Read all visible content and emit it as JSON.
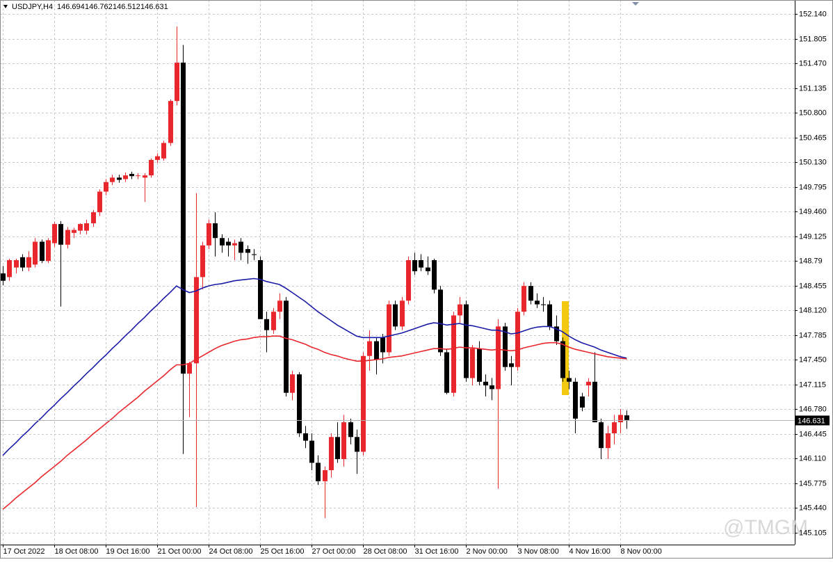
{
  "chart_data": {
    "type": "candlestick",
    "symbol": "USDJPY,H4",
    "watermark": "@TMGM",
    "up_color": "#e8262b",
    "down_color": "#000000",
    "grid": true,
    "ylim": [
      144.94,
      152.33
    ],
    "yticks": [
      {
        "value": 152.14,
        "label": "152.140"
      },
      {
        "value": 151.805,
        "label": "151.805"
      },
      {
        "value": 151.47,
        "label": "151.470"
      },
      {
        "value": 151.135,
        "label": "151.135"
      },
      {
        "value": 150.8,
        "label": "150.800"
      },
      {
        "value": 150.465,
        "label": "150.465"
      },
      {
        "value": 150.13,
        "label": "150.130"
      },
      {
        "value": 149.795,
        "label": "149.795"
      },
      {
        "value": 149.46,
        "label": "149.460"
      },
      149.125,
      148.79,
      148.455,
      {
        "value": 148.12,
        "label": "148.120"
      },
      147.785,
      {
        "value": 147.45,
        "label": "147.450"
      },
      147.115,
      {
        "value": 146.78,
        "label": "146.780"
      },
      146.445,
      {
        "value": 146.11,
        "label": "146.110"
      },
      145.775,
      {
        "value": 145.44,
        "label": "145.440"
      },
      145.105
    ],
    "categories": [
      "17 Oct 2022",
      null,
      null,
      null,
      null,
      null,
      null,
      null,
      "18 Oct 08:00",
      null,
      null,
      null,
      null,
      null,
      null,
      null,
      "19 Oct 16:00",
      null,
      null,
      null,
      null,
      null,
      null,
      null,
      "21 Oct 00:00",
      null,
      null,
      null,
      null,
      null,
      null,
      null,
      "24 Oct 08:00",
      null,
      null,
      null,
      null,
      null,
      null,
      null,
      "25 Oct 16:00",
      null,
      null,
      null,
      null,
      null,
      null,
      null,
      "27 Oct 00:00",
      null,
      null,
      null,
      null,
      null,
      null,
      null,
      "28 Oct 08:00",
      null,
      null,
      null,
      null,
      null,
      null,
      null,
      "31 Oct 16:00",
      null,
      null,
      null,
      null,
      null,
      null,
      null,
      "2 Nov 00:00",
      null,
      null,
      null,
      null,
      null,
      null,
      null,
      "3 Nov 08:00",
      null,
      null,
      null,
      null,
      null,
      null,
      null,
      "4 Nov 16:00",
      null,
      null,
      null,
      null,
      null,
      null,
      null,
      "8 Nov 00:00",
      null
    ],
    "ohlc": [
      [
        148.62,
        148.72,
        148.46,
        148.52
      ],
      [
        148.57,
        148.82,
        148.52,
        148.8
      ],
      [
        148.7,
        148.82,
        148.62,
        148.8
      ],
      [
        148.84,
        148.88,
        148.65,
        148.7
      ],
      [
        148.7,
        148.92,
        148.65,
        148.84
      ],
      [
        148.74,
        149.1,
        148.7,
        149.05
      ],
      [
        149.05,
        149.08,
        148.76,
        148.79
      ],
      [
        148.79,
        149.1,
        148.76,
        149.07
      ],
      [
        149.03,
        149.32,
        148.98,
        149.29
      ],
      [
        149.29,
        149.33,
        148.17,
        149.01
      ],
      [
        149.01,
        149.25,
        148.96,
        149.21
      ],
      [
        149.17,
        149.24,
        149.1,
        149.21
      ],
      [
        149.2,
        149.3,
        149.15,
        149.29
      ],
      [
        149.2,
        149.35,
        149.15,
        149.3
      ],
      [
        149.3,
        149.48,
        149.25,
        149.45
      ],
      [
        149.45,
        149.76,
        149.4,
        149.73
      ],
      [
        149.73,
        149.9,
        149.68,
        149.86
      ],
      [
        149.86,
        149.96,
        149.82,
        149.92
      ],
      [
        149.92,
        149.96,
        149.85,
        149.89
      ],
      [
        149.9,
        149.99,
        149.86,
        149.95
      ],
      [
        149.97,
        150.0,
        149.9,
        149.94
      ],
      [
        149.95,
        149.98,
        149.9,
        149.95
      ],
      [
        149.92,
        149.98,
        149.59,
        149.95
      ],
      [
        149.95,
        150.18,
        149.92,
        150.16
      ],
      [
        150.16,
        150.25,
        150.12,
        150.21
      ],
      [
        150.18,
        150.42,
        150.15,
        150.39
      ],
      [
        150.39,
        150.98,
        150.35,
        150.96
      ],
      [
        150.96,
        151.97,
        150.9,
        151.48
      ],
      [
        151.48,
        151.72,
        146.17,
        147.26
      ],
      [
        147.26,
        147.42,
        146.67,
        147.4
      ],
      [
        147.4,
        149.71,
        145.45,
        148.57
      ],
      [
        148.57,
        149.05,
        148.4,
        149.0
      ],
      [
        149.0,
        149.35,
        148.95,
        149.3
      ],
      [
        149.3,
        149.45,
        148.85,
        149.1
      ],
      [
        149.1,
        149.15,
        148.9,
        149.0
      ],
      [
        149.05,
        149.1,
        148.85,
        149.0
      ],
      [
        149.0,
        149.08,
        148.8,
        149.03
      ],
      [
        149.05,
        149.1,
        148.8,
        148.9
      ],
      [
        148.95,
        149.0,
        148.75,
        148.9
      ],
      [
        148.88,
        148.95,
        148.8,
        148.87
      ],
      [
        148.8,
        148.85,
        148.0,
        148.0
      ],
      [
        148.0,
        148.1,
        147.55,
        147.85
      ],
      [
        147.85,
        148.15,
        147.8,
        148.1
      ],
      [
        148.1,
        148.35,
        148.0,
        148.25
      ],
      [
        148.25,
        148.3,
        146.95,
        147.0
      ],
      [
        147.0,
        147.3,
        146.9,
        147.25
      ],
      [
        147.25,
        147.28,
        146.4,
        146.45
      ],
      [
        146.45,
        146.55,
        146.25,
        146.35
      ],
      [
        146.35,
        146.45,
        145.95,
        146.05
      ],
      [
        146.05,
        146.15,
        145.75,
        145.8
      ],
      [
        145.8,
        146.0,
        145.3,
        145.95
      ],
      [
        145.95,
        146.45,
        145.85,
        146.4
      ],
      [
        146.4,
        146.6,
        146.05,
        146.1
      ],
      [
        146.1,
        146.7,
        146.0,
        146.6
      ],
      [
        146.6,
        146.65,
        146.3,
        146.4
      ],
      [
        146.4,
        146.5,
        145.9,
        146.2
      ],
      [
        146.2,
        147.55,
        146.15,
        147.5
      ],
      [
        147.5,
        147.85,
        147.3,
        147.7
      ],
      [
        147.7,
        147.75,
        147.25,
        147.45
      ],
      [
        147.75,
        147.8,
        147.4,
        147.55
      ],
      [
        147.55,
        148.25,
        147.5,
        148.2
      ],
      [
        148.2,
        148.25,
        147.85,
        147.9
      ],
      [
        147.9,
        148.3,
        147.85,
        148.25
      ],
      [
        148.25,
        148.85,
        148.2,
        148.8
      ],
      [
        148.8,
        148.9,
        148.6,
        148.65
      ],
      [
        148.8,
        148.88,
        148.65,
        148.7
      ],
      [
        148.7,
        148.85,
        148.6,
        148.65
      ],
      [
        148.8,
        148.82,
        148.35,
        148.4
      ],
      [
        148.4,
        148.45,
        147.5,
        147.55
      ],
      [
        147.55,
        147.6,
        146.98,
        147.0
      ],
      [
        147.0,
        148.1,
        146.95,
        148.05
      ],
      [
        148.05,
        148.3,
        147.95,
        148.2
      ],
      [
        148.2,
        148.25,
        147.15,
        147.2
      ],
      [
        147.2,
        147.65,
        147.1,
        147.6
      ],
      [
        147.6,
        147.7,
        147.1,
        147.15
      ],
      [
        147.15,
        147.25,
        146.95,
        147.1
      ],
      [
        147.1,
        147.2,
        146.9,
        147.05
      ],
      [
        147.05,
        148.0,
        145.7,
        147.9
      ],
      [
        147.9,
        147.95,
        147.3,
        147.35
      ],
      [
        147.4,
        147.5,
        147.1,
        147.35
      ],
      [
        147.35,
        148.15,
        147.3,
        148.1
      ],
      [
        148.1,
        148.5,
        148.05,
        148.45
      ],
      [
        148.45,
        148.5,
        148.2,
        148.25
      ],
      [
        148.25,
        148.35,
        148.15,
        148.2
      ],
      [
        148.2,
        148.3,
        148.1,
        148.19
      ],
      [
        148.2,
        148.25,
        147.85,
        147.9
      ],
      [
        147.9,
        148.05,
        147.65,
        147.7
      ],
      [
        147.7,
        147.75,
        147.15,
        147.2
      ],
      [
        147.2,
        147.3,
        147.05,
        147.15
      ],
      [
        147.15,
        147.2,
        146.45,
        146.65
      ],
      [
        146.95,
        147.0,
        146.75,
        146.8
      ],
      [
        147.1,
        147.2,
        146.95,
        147.15
      ],
      [
        147.15,
        147.55,
        146.6,
        146.6
      ],
      [
        146.6,
        146.65,
        146.1,
        146.25
      ],
      [
        146.25,
        146.55,
        146.1,
        146.45
      ],
      [
        146.45,
        146.7,
        146.3,
        146.6
      ],
      [
        146.6,
        146.78,
        146.45,
        146.7
      ],
      [
        146.694,
        146.762,
        146.512,
        146.631
      ]
    ],
    "indicators": [
      {
        "color": "#1a1aa6",
        "values": [
          146.15,
          146.24,
          146.32,
          146.41,
          146.49,
          146.58,
          146.66,
          146.75,
          146.83,
          146.92,
          147.0,
          147.09,
          147.17,
          147.26,
          147.34,
          147.43,
          147.51,
          147.6,
          147.68,
          147.77,
          147.85,
          147.94,
          148.02,
          148.11,
          148.19,
          148.28,
          148.36,
          148.45,
          148.4,
          148.36,
          148.38,
          148.42,
          148.45,
          148.47,
          148.48,
          148.5,
          148.52,
          148.53,
          148.54,
          148.55,
          148.54,
          148.51,
          148.49,
          148.47,
          148.42,
          148.36,
          148.3,
          148.24,
          148.17,
          148.1,
          148.04,
          147.98,
          147.92,
          147.87,
          147.82,
          147.77,
          147.75,
          147.75,
          147.75,
          147.75,
          147.77,
          147.79,
          147.81,
          147.84,
          147.87,
          147.9,
          147.93,
          147.95,
          147.94,
          147.92,
          147.93,
          147.94,
          147.92,
          147.91,
          147.89,
          147.87,
          147.85,
          147.85,
          147.83,
          147.8,
          147.81,
          147.84,
          147.87,
          147.89,
          147.9,
          147.9,
          147.87,
          147.83,
          147.77,
          147.72,
          147.68,
          147.65,
          147.62,
          147.58,
          147.55,
          147.52,
          147.49,
          147.47
        ]
      },
      {
        "color": "#e8262b",
        "values": [
          145.42,
          145.49,
          145.57,
          145.64,
          145.71,
          145.78,
          145.86,
          145.93,
          146.0,
          146.07,
          146.15,
          146.22,
          146.29,
          146.36,
          146.44,
          146.51,
          146.58,
          146.65,
          146.73,
          146.8,
          146.87,
          146.94,
          147.02,
          147.09,
          147.16,
          147.23,
          147.31,
          147.38,
          147.38,
          147.4,
          147.45,
          147.5,
          147.55,
          147.6,
          147.64,
          147.67,
          147.7,
          147.72,
          147.73,
          147.75,
          147.76,
          147.76,
          147.77,
          147.77,
          147.74,
          147.72,
          147.69,
          147.66,
          147.62,
          147.59,
          147.55,
          147.52,
          147.5,
          147.47,
          147.45,
          147.43,
          147.43,
          147.44,
          147.45,
          147.46,
          147.48,
          147.49,
          147.5,
          147.52,
          147.54,
          147.56,
          147.58,
          147.6,
          147.6,
          147.59,
          147.6,
          147.62,
          147.61,
          147.61,
          147.6,
          147.59,
          147.58,
          147.59,
          147.58,
          147.57,
          147.58,
          147.61,
          147.63,
          147.65,
          147.67,
          147.68,
          147.68,
          147.66,
          147.62,
          147.59,
          147.57,
          147.55,
          147.53,
          147.51,
          147.49,
          147.48,
          147.47,
          147.46
        ]
      }
    ]
  }
}
